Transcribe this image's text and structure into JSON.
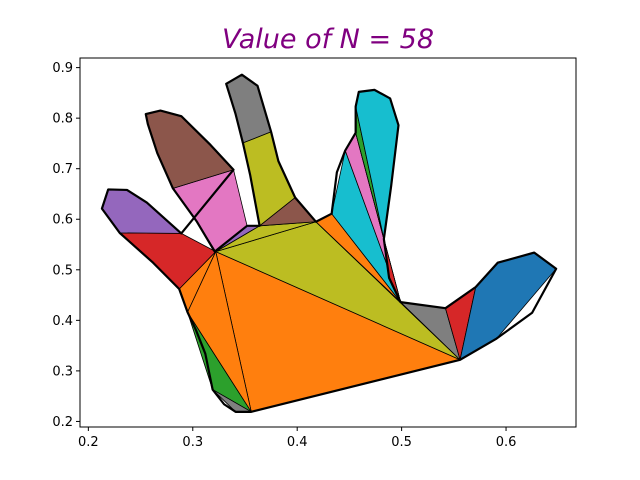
{
  "chart_data": {
    "type": "polygon-triangulation",
    "title": "Value of N = 58",
    "title_color": "#800080",
    "xlim": [
      0.192,
      0.667
    ],
    "ylim": [
      0.189,
      0.919
    ],
    "x_ticks": [
      0.2,
      0.3,
      0.4,
      0.5,
      0.6
    ],
    "y_ticks": [
      0.2,
      0.3,
      0.4,
      0.5,
      0.6,
      0.7,
      0.8,
      0.9
    ],
    "x_tick_labels": [
      "0.2",
      "0.3",
      "0.4",
      "0.5",
      "0.6"
    ],
    "y_tick_labels": [
      "0.2",
      "0.3",
      "0.4",
      "0.5",
      "0.6",
      "0.7",
      "0.8",
      "0.9"
    ],
    "grid": false,
    "outline": [
      [
        0.356,
        0.219
      ],
      [
        0.556,
        0.322
      ],
      [
        0.591,
        0.364
      ],
      [
        0.625,
        0.415
      ],
      [
        0.648,
        0.502
      ],
      [
        0.627,
        0.534
      ],
      [
        0.592,
        0.514
      ],
      [
        0.571,
        0.466
      ],
      [
        0.542,
        0.424
      ],
      [
        0.499,
        0.436
      ],
      [
        0.488,
        0.484
      ],
      [
        0.483,
        0.561
      ],
      [
        0.49,
        0.666
      ],
      [
        0.497,
        0.786
      ],
      [
        0.489,
        0.839
      ],
      [
        0.474,
        0.856
      ],
      [
        0.459,
        0.852
      ],
      [
        0.456,
        0.823
      ],
      [
        0.456,
        0.771
      ],
      [
        0.446,
        0.736
      ],
      [
        0.438,
        0.693
      ],
      [
        0.433,
        0.611
      ],
      [
        0.418,
        0.595
      ],
      [
        0.398,
        0.643
      ],
      [
        0.382,
        0.715
      ],
      [
        0.375,
        0.773
      ],
      [
        0.362,
        0.864
      ],
      [
        0.347,
        0.886
      ],
      [
        0.332,
        0.868
      ],
      [
        0.341,
        0.808
      ],
      [
        0.348,
        0.751
      ],
      [
        0.355,
        0.687
      ],
      [
        0.364,
        0.587
      ],
      [
        0.352,
        0.587
      ],
      [
        0.321,
        0.536
      ],
      [
        0.304,
        0.595
      ],
      [
        0.281,
        0.661
      ],
      [
        0.266,
        0.731
      ],
      [
        0.257,
        0.788
      ],
      [
        0.255,
        0.808
      ],
      [
        0.269,
        0.815
      ],
      [
        0.289,
        0.804
      ],
      [
        0.317,
        0.747
      ],
      [
        0.339,
        0.698
      ],
      [
        0.289,
        0.572
      ],
      [
        0.256,
        0.633
      ],
      [
        0.237,
        0.658
      ],
      [
        0.219,
        0.659
      ],
      [
        0.213,
        0.621
      ],
      [
        0.23,
        0.573
      ],
      [
        0.262,
        0.514
      ],
      [
        0.287,
        0.462
      ],
      [
        0.295,
        0.416
      ],
      [
        0.303,
        0.381
      ],
      [
        0.312,
        0.334
      ],
      [
        0.319,
        0.263
      ],
      [
        0.33,
        0.234
      ],
      [
        0.341,
        0.219
      ]
    ],
    "triangles": [
      {
        "points": [
          [
            0.356,
            0.219
          ],
          [
            0.295,
            0.416
          ],
          [
            0.319,
            0.263
          ]
        ],
        "color": "#2ca02c"
      },
      {
        "points": [
          [
            0.319,
            0.263
          ],
          [
            0.341,
            0.219
          ],
          [
            0.356,
            0.219
          ]
        ],
        "color": "#7f7f7f"
      },
      {
        "points": [
          [
            0.356,
            0.219
          ],
          [
            0.556,
            0.322
          ],
          [
            0.322,
            0.536
          ]
        ],
        "color": "#ff7f0e"
      },
      {
        "points": [
          [
            0.322,
            0.536
          ],
          [
            0.287,
            0.462
          ],
          [
            0.295,
            0.416
          ]
        ],
        "color": "#ff7f0e"
      },
      {
        "points": [
          [
            0.295,
            0.416
          ],
          [
            0.356,
            0.219
          ],
          [
            0.322,
            0.536
          ]
        ],
        "color": "#ff7f0e"
      },
      {
        "points": [
          [
            0.322,
            0.536
          ],
          [
            0.556,
            0.322
          ],
          [
            0.418,
            0.595
          ]
        ],
        "color": "#bcbd22"
      },
      {
        "points": [
          [
            0.418,
            0.595
          ],
          [
            0.364,
            0.587
          ],
          [
            0.322,
            0.536
          ]
        ],
        "color": "#bcbd22"
      },
      {
        "points": [
          [
            0.418,
            0.595
          ],
          [
            0.556,
            0.322
          ],
          [
            0.499,
            0.436
          ]
        ],
        "color": "#bcbd22"
      },
      {
        "points": [
          [
            0.499,
            0.436
          ],
          [
            0.556,
            0.322
          ],
          [
            0.542,
            0.424
          ]
        ],
        "color": "#7f7f7f"
      },
      {
        "points": [
          [
            0.556,
            0.322
          ],
          [
            0.571,
            0.466
          ],
          [
            0.542,
            0.424
          ]
        ],
        "color": "#d62728"
      },
      {
        "points": [
          [
            0.556,
            0.322
          ],
          [
            0.591,
            0.364
          ],
          [
            0.648,
            0.502
          ],
          [
            0.627,
            0.534
          ],
          [
            0.592,
            0.514
          ],
          [
            0.571,
            0.466
          ]
        ],
        "color": "#1f77b4"
      },
      {
        "points": [
          [
            0.499,
            0.436
          ],
          [
            0.418,
            0.595
          ],
          [
            0.433,
            0.611
          ]
        ],
        "color": "#ff7f0e"
      },
      {
        "points": [
          [
            0.433,
            0.611
          ],
          [
            0.446,
            0.736
          ],
          [
            0.499,
            0.436
          ]
        ],
        "color": "#17becf"
      },
      {
        "points": [
          [
            0.446,
            0.736
          ],
          [
            0.456,
            0.771
          ],
          [
            0.499,
            0.436
          ]
        ],
        "color": "#e377c2"
      },
      {
        "points": [
          [
            0.456,
            0.771
          ],
          [
            0.483,
            0.561
          ],
          [
            0.499,
            0.436
          ]
        ],
        "color": "#17becf"
      },
      {
        "points": [
          [
            0.483,
            0.561
          ],
          [
            0.499,
            0.436
          ],
          [
            0.488,
            0.484
          ]
        ],
        "color": "#d62728"
      },
      {
        "points": [
          [
            0.456,
            0.771
          ],
          [
            0.456,
            0.823
          ],
          [
            0.483,
            0.561
          ]
        ],
        "color": "#2ca02c"
      },
      {
        "points": [
          [
            0.456,
            0.823
          ],
          [
            0.459,
            0.852
          ],
          [
            0.474,
            0.856
          ],
          [
            0.489,
            0.839
          ],
          [
            0.497,
            0.786
          ],
          [
            0.49,
            0.666
          ],
          [
            0.483,
            0.561
          ]
        ],
        "color": "#17becf"
      },
      {
        "points": [
          [
            0.364,
            0.587
          ],
          [
            0.418,
            0.595
          ],
          [
            0.398,
            0.643
          ]
        ],
        "color": "#8c564b"
      },
      {
        "points": [
          [
            0.364,
            0.587
          ],
          [
            0.398,
            0.643
          ],
          [
            0.382,
            0.715
          ],
          [
            0.375,
            0.773
          ],
          [
            0.348,
            0.751
          ],
          [
            0.355,
            0.687
          ]
        ],
        "color": "#bcbd22"
      },
      {
        "points": [
          [
            0.348,
            0.751
          ],
          [
            0.375,
            0.773
          ],
          [
            0.362,
            0.864
          ],
          [
            0.347,
            0.886
          ],
          [
            0.332,
            0.868
          ],
          [
            0.341,
            0.808
          ]
        ],
        "color": "#7f7f7f"
      },
      {
        "points": [
          [
            0.322,
            0.536
          ],
          [
            0.364,
            0.587
          ],
          [
            0.352,
            0.587
          ]
        ],
        "color": "#9467bd"
      },
      {
        "points": [
          [
            0.322,
            0.536
          ],
          [
            0.352,
            0.587
          ],
          [
            0.339,
            0.698
          ],
          [
            0.281,
            0.661
          ],
          [
            0.304,
            0.595
          ]
        ],
        "color": "#e377c2"
      },
      {
        "points": [
          [
            0.281,
            0.661
          ],
          [
            0.339,
            0.698
          ],
          [
            0.317,
            0.747
          ],
          [
            0.289,
            0.804
          ],
          [
            0.269,
            0.815
          ],
          [
            0.255,
            0.808
          ],
          [
            0.257,
            0.788
          ],
          [
            0.266,
            0.731
          ]
        ],
        "color": "#8c564b"
      },
      {
        "points": [
          [
            0.322,
            0.536
          ],
          [
            0.287,
            0.462
          ],
          [
            0.262,
            0.514
          ],
          [
            0.23,
            0.573
          ],
          [
            0.289,
            0.572
          ]
        ],
        "color": "#d62728"
      },
      {
        "points": [
          [
            0.23,
            0.573
          ],
          [
            0.289,
            0.572
          ],
          [
            0.256,
            0.633
          ],
          [
            0.237,
            0.658
          ],
          [
            0.219,
            0.659
          ],
          [
            0.213,
            0.621
          ]
        ],
        "color": "#9467bd"
      }
    ]
  }
}
